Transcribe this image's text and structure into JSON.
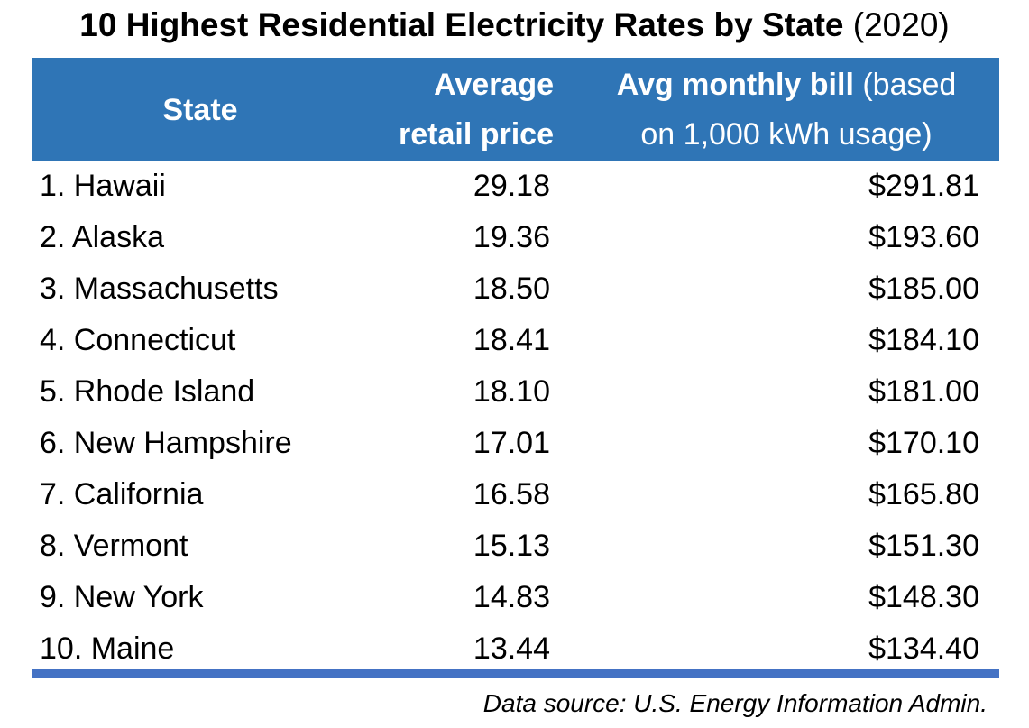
{
  "chart_data": {
    "type": "table",
    "title": "10 Highest Residential Electricity Rates by State",
    "title_year": "(2020)",
    "columns": {
      "state": "State",
      "price_line1": "Average",
      "price_line2": "retail price",
      "bill_bold": "Avg monthly bill",
      "bill_rest1": " (based",
      "bill_line2": "on 1,000 kWh usage)"
    },
    "rows": [
      {
        "state": "1. Hawaii",
        "price": "29.18",
        "bill": "$291.81"
      },
      {
        "state": "2. Alaska",
        "price": "19.36",
        "bill": "$193.60"
      },
      {
        "state": "3. Massachusetts",
        "price": "18.50",
        "bill": "$185.00"
      },
      {
        "state": "4. Connecticut",
        "price": "18.41",
        "bill": "$184.10"
      },
      {
        "state": "5. Rhode Island",
        "price": "18.10",
        "bill": "$181.00"
      },
      {
        "state": "6. New Hampshire",
        "price": "17.01",
        "bill": "$170.10"
      },
      {
        "state": "7. California",
        "price": "16.58",
        "bill": "$165.80"
      },
      {
        "state": "8. Vermont",
        "price": "15.13",
        "bill": "$151.30"
      },
      {
        "state": "9. New York",
        "price": "14.83",
        "bill": "$148.30"
      },
      {
        "state": "10. Maine",
        "price": "13.44",
        "bill": "$134.40"
      }
    ],
    "source": "Data source: U.S. Energy Information Admin.",
    "colors": {
      "header_bg": "#2f75b6",
      "header_text": "#ffffff",
      "bottom_rule": "#4472c4"
    }
  }
}
